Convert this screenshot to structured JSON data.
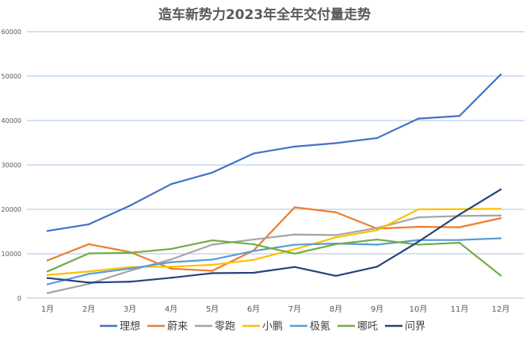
{
  "chart_data": {
    "type": "line",
    "title": "造车新势力2023年全年交付量走势",
    "xlabel": "",
    "ylabel": "",
    "categories": [
      "1月",
      "2月",
      "3月",
      "4月",
      "5月",
      "6月",
      "7月",
      "8月",
      "9月",
      "10月",
      "11月",
      "12月"
    ],
    "ylim": [
      0,
      60000
    ],
    "yticks": [
      0,
      10000,
      20000,
      30000,
      40000,
      50000,
      60000
    ],
    "ytick_labels": [
      "0",
      "10000",
      "20000",
      "30000",
      "40000",
      "50000",
      "60000"
    ],
    "grid": true,
    "legend_position": "bottom",
    "series": [
      {
        "name": "理想",
        "color": "#4472C4",
        "values": [
          15141,
          16620,
          20823,
          25681,
          28277,
          32575,
          34134,
          34914,
          36060,
          40422,
          41030,
          50353
        ]
      },
      {
        "name": "蔚来",
        "color": "#ED7D31",
        "values": [
          8506,
          12157,
          10378,
          6658,
          6155,
          10707,
          20462,
          19329,
          15641,
          16074,
          15959,
          18012
        ]
      },
      {
        "name": "零跑",
        "color": "#A5A5A5",
        "values": [
          1139,
          3198,
          6172,
          8726,
          12058,
          13209,
          14335,
          14190,
          15800,
          18202,
          18508,
          18618
        ]
      },
      {
        "name": "小鹏",
        "color": "#FFC000",
        "values": [
          5218,
          6010,
          7002,
          7079,
          7506,
          8620,
          11008,
          13690,
          15310,
          20002,
          20041,
          20115
        ]
      },
      {
        "name": "极氪",
        "color": "#5B9BD5",
        "values": [
          3116,
          5455,
          6663,
          8101,
          8678,
          10620,
          12039,
          12303,
          12053,
          13077,
          13104,
          13476
        ]
      },
      {
        "name": "哪吒",
        "color": "#70AD47",
        "values": [
          6016,
          10073,
          10212,
          11080,
          13029,
          12132,
          10020,
          12160,
          13208,
          12040,
          12480,
          5100
        ]
      },
      {
        "name": "问界",
        "color": "#264478",
        "values": [
          4540,
          3505,
          3699,
          4585,
          5629,
          5712,
          7014,
          5018,
          7087,
          12700,
          18827,
          24468
        ]
      }
    ]
  }
}
